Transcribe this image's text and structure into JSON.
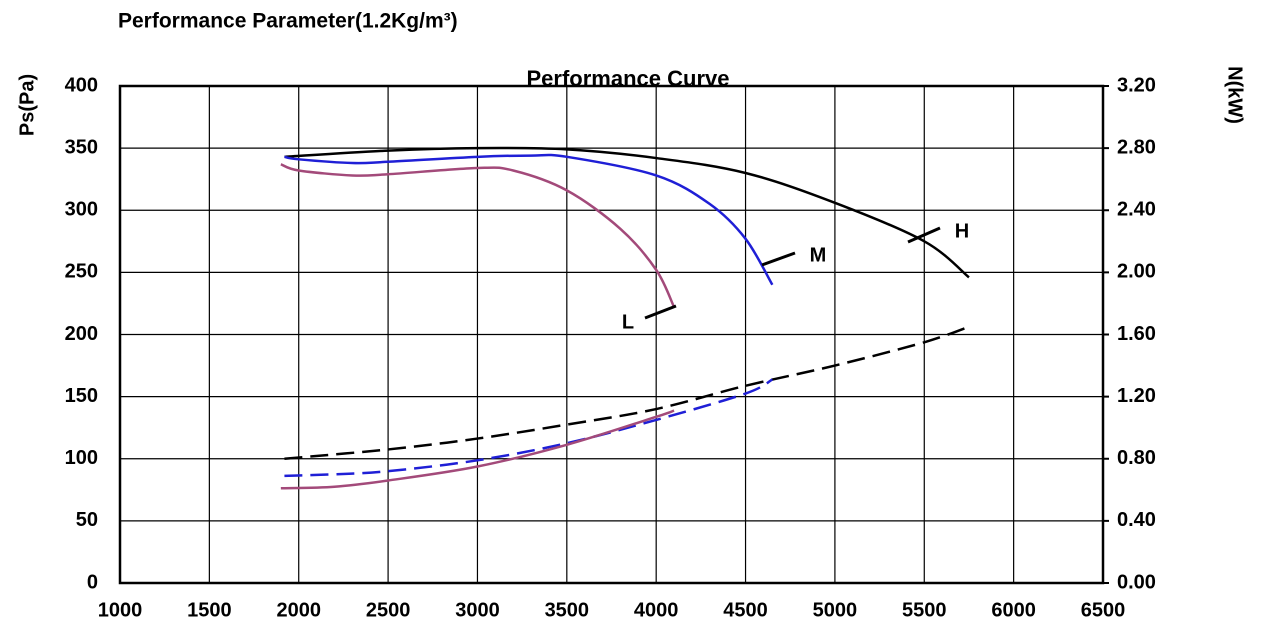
{
  "chart_data": {
    "type": "line",
    "title": "Performance Parameter(1.2Kg/m³)",
    "subtitle": "Performance Curve",
    "y_label": "Ps(Pa)",
    "y2_label": "N(kW)",
    "xlim": [
      1000,
      6500
    ],
    "xticks": [
      1000,
      1500,
      2000,
      2500,
      3000,
      3500,
      4000,
      4500,
      5000,
      5500,
      6000,
      6500
    ],
    "ylim": [
      0,
      400
    ],
    "yticks": [
      0,
      50,
      100,
      150,
      200,
      250,
      300,
      350,
      400
    ],
    "y2lim": [
      0,
      3.2
    ],
    "y2ticks": [
      {
        "value": 0,
        "label": "0.00"
      },
      {
        "value": 0.4,
        "label": "0.40"
      },
      {
        "value": 0.8,
        "label": "0.80"
      },
      {
        "value": 1.2,
        "label": "1.20"
      },
      {
        "value": 1.6,
        "label": "1.60"
      },
      {
        "value": 2.0,
        "label": "2.00"
      },
      {
        "value": 2.4,
        "label": "2.40"
      },
      {
        "value": 2.8,
        "label": "2.80"
      },
      {
        "value": 3.2,
        "label": "3.20"
      }
    ],
    "grid": true,
    "series": [
      {
        "name": "H",
        "color": "#000000",
        "dashed": false,
        "x": [
          1920,
          2500,
          3000,
          3500,
          4000,
          4500,
          5000,
          5500,
          5750
        ],
        "values": [
          343,
          348,
          350,
          349,
          342,
          330,
          306,
          275,
          246
        ]
      },
      {
        "name": "M",
        "color": "#1f1fd6",
        "dashed": false,
        "x": [
          1920,
          2000,
          2300,
          2500,
          3000,
          3300,
          3500,
          4000,
          4300,
          4500,
          4650
        ],
        "values": [
          343,
          341,
          338,
          339,
          343,
          344,
          343,
          328,
          305,
          277,
          240
        ]
      },
      {
        "name": "L",
        "color": "#a34a7a",
        "dashed": false,
        "x": [
          1900,
          2000,
          2300,
          2500,
          3000,
          3200,
          3500,
          3800,
          4000,
          4100
        ],
        "values": [
          337,
          332,
          328,
          329,
          334,
          332,
          316,
          285,
          252,
          222
        ]
      },
      {
        "color": "#000000",
        "dashed": true,
        "axis": "y2",
        "x": [
          1920,
          2500,
          3000,
          3500,
          4000,
          4500,
          5000,
          5500,
          5750
        ],
        "values": [
          0.8,
          0.86,
          0.93,
          1.02,
          1.12,
          1.27,
          1.4,
          1.55,
          1.65
        ]
      },
      {
        "color": "#1f1fd6",
        "dashed": true,
        "axis": "y2",
        "x": [
          1920,
          2200,
          2500,
          3000,
          3500,
          4000,
          4500,
          4650
        ],
        "values": [
          0.69,
          0.7,
          0.72,
          0.79,
          0.9,
          1.05,
          1.22,
          1.31
        ]
      },
      {
        "color": "#a34a7a",
        "dashed": false,
        "axis": "y2",
        "x": [
          1900,
          2200,
          2500,
          3000,
          3500,
          4000,
          4100
        ],
        "values": [
          0.61,
          0.62,
          0.66,
          0.75,
          0.89,
          1.07,
          1.11
        ]
      }
    ]
  }
}
